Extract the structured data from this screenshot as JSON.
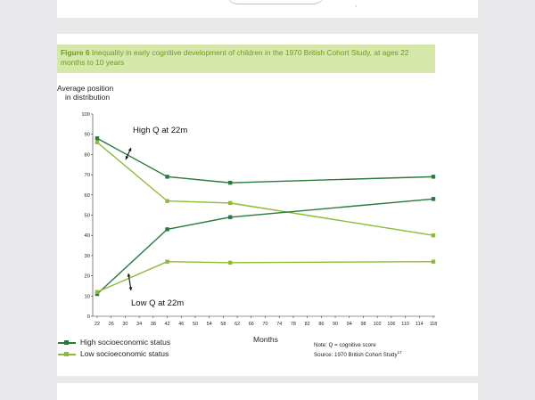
{
  "caption": {
    "prefix": "Figure 6",
    "text": " Inequality in early cognitive development of children in the 1970 British Cohort Study, at ages 22 months to 10 years"
  },
  "ylabel_lines": [
    "Average position",
    "in distribution"
  ],
  "annotations": {
    "high": "High Q at 22m",
    "low": "Low Q at 22m"
  },
  "legend": [
    {
      "label": "High socioeconomic status"
    },
    {
      "label": "Low socioeconomic status"
    }
  ],
  "note": {
    "line1": "Note: Q = cognitive score",
    "line2": "Source: 1970 British Cohort Study",
    "sup": "17"
  },
  "colors": {
    "high_ses": "#2a7a3b",
    "low_ses": "#8dbb35",
    "caption_bg": "#d6e8a9",
    "caption_text": "#6d9a23"
  },
  "chart_data": {
    "type": "line",
    "xlabel": "Months",
    "ylabel": "Average position in distribution",
    "xlim": [
      22,
      118
    ],
    "ylim": [
      0,
      100
    ],
    "x_ticks": [
      22,
      26,
      30,
      34,
      38,
      42,
      46,
      50,
      54,
      58,
      62,
      66,
      70,
      74,
      78,
      82,
      86,
      90,
      94,
      98,
      102,
      106,
      110,
      114,
      118
    ],
    "y_ticks": [
      0,
      10,
      20,
      30,
      40,
      50,
      60,
      70,
      80,
      90,
      100
    ],
    "series": [
      {
        "name": "High socioeconomic status",
        "group": "High Q at 22m",
        "color": "#2a7a3b",
        "x": [
          22,
          42,
          60,
          118
        ],
        "y": [
          88,
          69,
          66,
          69
        ]
      },
      {
        "name": "Low socioeconomic status",
        "group": "High Q at 22m",
        "color": "#8dbb35",
        "x": [
          22,
          42,
          60,
          118
        ],
        "y": [
          86,
          57,
          56,
          40
        ]
      },
      {
        "name": "High socioeconomic status",
        "group": "Low Q at 22m",
        "color": "#2a7a3b",
        "x": [
          22,
          42,
          60,
          118
        ],
        "y": [
          11,
          43,
          49,
          58
        ]
      },
      {
        "name": "Low socioeconomic status",
        "group": "Low Q at 22m",
        "color": "#8dbb35",
        "x": [
          22,
          42,
          60,
          118
        ],
        "y": [
          12,
          27,
          26.5,
          27
        ]
      }
    ]
  }
}
